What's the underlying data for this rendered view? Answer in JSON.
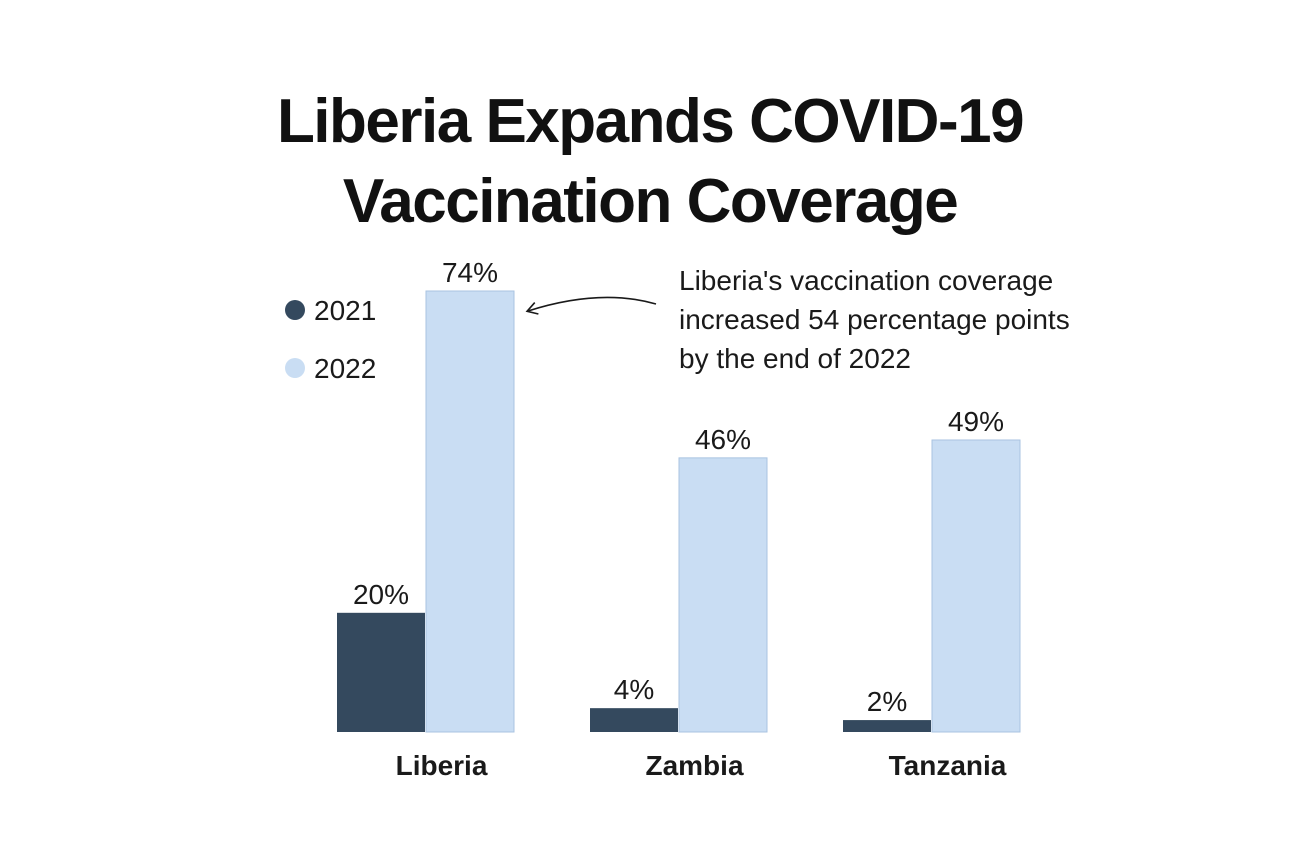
{
  "chart_data": {
    "type": "bar",
    "title_lines": [
      "Liberia Expands COVID-19",
      "Vaccination Coverage"
    ],
    "categories": [
      "Liberia",
      "Zambia",
      "Tanzania"
    ],
    "series": [
      {
        "name": "2021",
        "values": [
          20,
          4,
          2
        ],
        "labels": [
          "20%",
          "4%",
          "2%"
        ],
        "color": "#34495e"
      },
      {
        "name": "2022",
        "values": [
          74,
          46,
          49
        ],
        "labels": [
          "74%",
          "46%",
          "49%"
        ],
        "color": "#c9ddf3"
      }
    ],
    "ylim": [
      0,
      100
    ],
    "grid": false,
    "legend_position": "top-left",
    "annotation": {
      "lines": [
        "Liberia's vaccination coverage",
        "increased 54 percentage points",
        "by the end of 2022"
      ],
      "target_category": "Liberia",
      "target_series": "2022"
    }
  }
}
